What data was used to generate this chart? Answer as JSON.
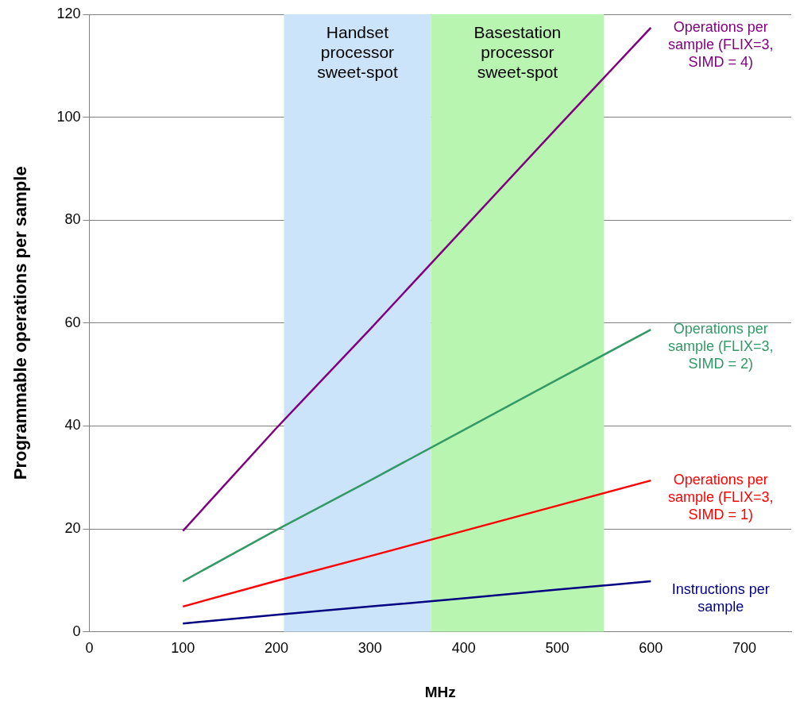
{
  "chart_data": {
    "type": "line",
    "xlabel": "MHz",
    "ylabel": "Programmable operations per sample",
    "x": [
      100,
      200,
      300,
      400,
      500,
      600
    ],
    "series": [
      {
        "name": "Operations per sample (FLIX=3, SIMD = 4)",
        "color": "#800080",
        "values": [
          19.6,
          39.6,
          58.8,
          78.4,
          98,
          117.4
        ]
      },
      {
        "name": "Operations per sample (FLIX=3, SIMD = 2)",
        "color": "#339966",
        "values": [
          9.8,
          19.8,
          29.4,
          39.2,
          49,
          58.7
        ]
      },
      {
        "name": "Operations per sample (FLIX=3, SIMD = 1)",
        "color": "#ff0000",
        "values": [
          4.9,
          9.9,
          14.7,
          19.6,
          24.5,
          29.4
        ]
      },
      {
        "name": "Instructions per sample",
        "color": "#000080",
        "values": [
          1.6,
          3.3,
          4.9,
          6.5,
          8.2,
          9.8
        ]
      }
    ],
    "xlim": [
      0,
      750
    ],
    "xticks": [
      0,
      100,
      200,
      300,
      400,
      500,
      600,
      700
    ],
    "ylim": [
      0,
      120
    ],
    "yticks": [
      0,
      20,
      40,
      60,
      80,
      100,
      120
    ],
    "bands": [
      {
        "axis": "x",
        "from": 208,
        "to": 365,
        "label": "Handset processor sweet-spot",
        "color": "#cce4fa"
      },
      {
        "axis": "x",
        "from": 365,
        "to": 550,
        "label": "Basestation processor sweet-spot",
        "color": "#b8f5b0"
      }
    ],
    "grid": "y",
    "legend": false,
    "marker": "none",
    "line_style": "solid"
  }
}
